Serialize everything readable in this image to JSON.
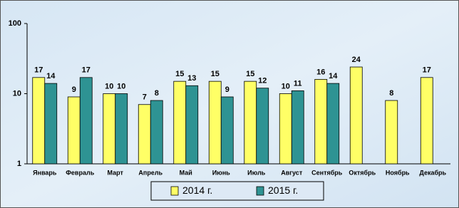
{
  "chart_data": {
    "type": "bar",
    "log_scale": true,
    "grid": false,
    "legend_position": "bottom",
    "categories": [
      "Январь",
      "Февраль",
      "Март",
      "Апрель",
      "Май",
      "Июнь",
      "Июль",
      "Август",
      "Сентябрь",
      "Октябрь",
      "Ноябрь",
      "Декабрь"
    ],
    "series": [
      {
        "name": "2014 г.",
        "color": "#ffff66",
        "values": [
          17,
          9,
          10,
          7,
          15,
          15,
          15,
          10,
          16,
          24,
          8,
          17
        ]
      },
      {
        "name": "2015 г.",
        "color": "#2e9393",
        "values": [
          14,
          17,
          10,
          8,
          13,
          9,
          12,
          11,
          14,
          null,
          null,
          null
        ]
      }
    ],
    "ylim": [
      1,
      100
    ],
    "yticks": [
      1,
      10,
      100
    ]
  }
}
